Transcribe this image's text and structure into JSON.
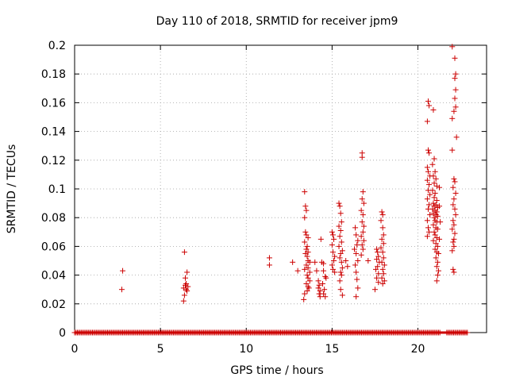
{
  "chart_data": {
    "type": "scatter",
    "title": "Day 110 of 2018, SRMTID for receiver jpm9",
    "xlabel": "GPS time / hours",
    "ylabel": "SRMTID / TECUs",
    "xlim": [
      0,
      24
    ],
    "ylim": [
      0,
      0.2
    ],
    "xticks": [
      0,
      5,
      10,
      15,
      20
    ],
    "xtick_labels": [
      "0",
      "5",
      "10",
      "15",
      "20"
    ],
    "yticks": [
      0,
      0.02,
      0.04,
      0.06,
      0.08,
      0.1,
      0.12,
      0.14,
      0.16,
      0.18,
      0.2
    ],
    "ytick_labels": [
      "0",
      "0.02",
      "0.04",
      "0.06",
      "0.08",
      "0.1",
      "0.12",
      "0.14",
      "0.16",
      "0.18",
      "0.2"
    ],
    "grid": true,
    "marker": "+",
    "color": "#cc0000",
    "zero_band": {
      "from": 0.0,
      "to": 22.9,
      "y": 0,
      "gaps": [
        [
          21.3,
          21.6
        ]
      ]
    },
    "series": [
      {
        "name": "SRMTID",
        "points": [
          [
            2.8,
            0.043
          ],
          [
            2.75,
            0.03
          ],
          [
            6.4,
            0.056
          ],
          [
            6.55,
            0.042
          ],
          [
            6.45,
            0.038
          ],
          [
            6.5,
            0.034
          ],
          [
            6.6,
            0.032
          ],
          [
            6.35,
            0.031
          ],
          [
            6.5,
            0.03
          ],
          [
            6.45,
            0.033
          ],
          [
            6.55,
            0.029
          ],
          [
            6.4,
            0.026
          ],
          [
            6.35,
            0.022
          ],
          [
            11.35,
            0.052
          ],
          [
            11.35,
            0.047
          ],
          [
            12.7,
            0.049
          ],
          [
            13.0,
            0.043
          ],
          [
            13.4,
            0.098
          ],
          [
            13.45,
            0.088
          ],
          [
            13.5,
            0.085
          ],
          [
            13.4,
            0.08
          ],
          [
            13.45,
            0.07
          ],
          [
            13.5,
            0.068
          ],
          [
            13.6,
            0.066
          ],
          [
            13.4,
            0.063
          ],
          [
            13.55,
            0.06
          ],
          [
            13.5,
            0.058
          ],
          [
            13.6,
            0.056
          ],
          [
            13.45,
            0.055
          ],
          [
            13.55,
            0.053
          ],
          [
            13.6,
            0.05
          ],
          [
            13.7,
            0.049
          ],
          [
            13.5,
            0.047
          ],
          [
            13.6,
            0.045
          ],
          [
            13.4,
            0.044
          ],
          [
            13.7,
            0.042
          ],
          [
            13.55,
            0.04
          ],
          [
            13.6,
            0.038
          ],
          [
            13.7,
            0.036
          ],
          [
            13.5,
            0.034
          ],
          [
            13.6,
            0.032
          ],
          [
            13.65,
            0.031
          ],
          [
            13.55,
            0.029
          ],
          [
            13.4,
            0.027
          ],
          [
            13.35,
            0.023
          ],
          [
            14.0,
            0.049
          ],
          [
            14.1,
            0.043
          ],
          [
            14.2,
            0.036
          ],
          [
            14.25,
            0.033
          ],
          [
            14.2,
            0.031
          ],
          [
            14.3,
            0.029
          ],
          [
            14.25,
            0.027
          ],
          [
            14.3,
            0.025
          ],
          [
            14.35,
            0.065
          ],
          [
            14.4,
            0.049
          ],
          [
            14.5,
            0.048
          ],
          [
            14.5,
            0.043
          ],
          [
            14.6,
            0.039
          ],
          [
            14.65,
            0.038
          ],
          [
            14.45,
            0.034
          ],
          [
            14.55,
            0.03
          ],
          [
            14.5,
            0.027
          ],
          [
            14.6,
            0.025
          ],
          [
            15.0,
            0.07
          ],
          [
            15.05,
            0.068
          ],
          [
            15.1,
            0.065
          ],
          [
            15.0,
            0.061
          ],
          [
            15.05,
            0.056
          ],
          [
            15.15,
            0.053
          ],
          [
            15.1,
            0.05
          ],
          [
            15.0,
            0.047
          ],
          [
            15.05,
            0.044
          ],
          [
            15.15,
            0.042
          ],
          [
            15.4,
            0.09
          ],
          [
            15.45,
            0.088
          ],
          [
            15.5,
            0.083
          ],
          [
            15.55,
            0.077
          ],
          [
            15.4,
            0.074
          ],
          [
            15.5,
            0.071
          ],
          [
            15.45,
            0.067
          ],
          [
            15.55,
            0.063
          ],
          [
            15.4,
            0.06
          ],
          [
            15.6,
            0.057
          ],
          [
            15.5,
            0.055
          ],
          [
            15.45,
            0.052
          ],
          [
            15.55,
            0.049
          ],
          [
            15.6,
            0.045
          ],
          [
            15.5,
            0.042
          ],
          [
            15.55,
            0.04
          ],
          [
            15.45,
            0.036
          ],
          [
            15.5,
            0.03
          ],
          [
            15.6,
            0.026
          ],
          [
            15.8,
            0.05
          ],
          [
            15.9,
            0.046
          ],
          [
            16.35,
            0.073
          ],
          [
            16.4,
            0.068
          ],
          [
            16.5,
            0.064
          ],
          [
            16.45,
            0.061
          ],
          [
            16.3,
            0.058
          ],
          [
            16.4,
            0.055
          ],
          [
            16.5,
            0.05
          ],
          [
            16.35,
            0.047
          ],
          [
            16.4,
            0.042
          ],
          [
            16.45,
            0.037
          ],
          [
            16.5,
            0.031
          ],
          [
            16.4,
            0.025
          ],
          [
            16.75,
            0.125
          ],
          [
            16.75,
            0.122
          ],
          [
            16.8,
            0.098
          ],
          [
            16.75,
            0.093
          ],
          [
            16.85,
            0.09
          ],
          [
            16.7,
            0.085
          ],
          [
            16.8,
            0.082
          ],
          [
            16.75,
            0.077
          ],
          [
            16.85,
            0.074
          ],
          [
            16.8,
            0.07
          ],
          [
            16.7,
            0.067
          ],
          [
            16.85,
            0.064
          ],
          [
            16.75,
            0.061
          ],
          [
            16.8,
            0.058
          ],
          [
            16.7,
            0.054
          ],
          [
            17.1,
            0.05
          ],
          [
            17.6,
            0.058
          ],
          [
            17.65,
            0.056
          ],
          [
            17.7,
            0.053
          ],
          [
            17.6,
            0.051
          ],
          [
            17.75,
            0.049
          ],
          [
            17.65,
            0.046
          ],
          [
            17.55,
            0.044
          ],
          [
            17.7,
            0.041
          ],
          [
            17.6,
            0.038
          ],
          [
            17.7,
            0.035
          ],
          [
            17.5,
            0.03
          ],
          [
            17.9,
            0.084
          ],
          [
            17.95,
            0.082
          ],
          [
            17.85,
            0.078
          ],
          [
            17.95,
            0.073
          ],
          [
            18.0,
            0.068
          ],
          [
            17.9,
            0.065
          ],
          [
            18.0,
            0.062
          ],
          [
            17.85,
            0.059
          ],
          [
            17.95,
            0.056
          ],
          [
            18.0,
            0.052
          ],
          [
            17.9,
            0.049
          ],
          [
            18.05,
            0.047
          ],
          [
            17.95,
            0.044
          ],
          [
            18.0,
            0.041
          ],
          [
            17.9,
            0.038
          ],
          [
            18.05,
            0.036
          ],
          [
            17.95,
            0.034
          ],
          [
            20.6,
            0.161
          ],
          [
            20.65,
            0.158
          ],
          [
            20.55,
            0.147
          ],
          [
            20.6,
            0.127
          ],
          [
            20.65,
            0.125
          ],
          [
            20.55,
            0.115
          ],
          [
            20.6,
            0.112
          ],
          [
            20.7,
            0.109
          ],
          [
            20.55,
            0.106
          ],
          [
            20.65,
            0.103
          ],
          [
            20.6,
            0.099
          ],
          [
            20.7,
            0.096
          ],
          [
            20.55,
            0.093
          ],
          [
            20.65,
            0.089
          ],
          [
            20.6,
            0.086
          ],
          [
            20.7,
            0.082
          ],
          [
            20.55,
            0.078
          ],
          [
            20.6,
            0.073
          ],
          [
            20.65,
            0.07
          ],
          [
            20.55,
            0.067
          ],
          [
            20.9,
            0.155
          ],
          [
            20.95,
            0.121
          ],
          [
            20.85,
            0.117
          ],
          [
            21.0,
            0.112
          ],
          [
            20.9,
            0.109
          ],
          [
            21.05,
            0.107
          ],
          [
            20.95,
            0.104
          ],
          [
            21.1,
            0.102
          ],
          [
            20.85,
            0.099
          ],
          [
            21.0,
            0.097
          ],
          [
            20.95,
            0.094
          ],
          [
            21.1,
            0.092
          ],
          [
            20.9,
            0.09
          ],
          [
            21.05,
            0.089
          ],
          [
            20.95,
            0.088
          ],
          [
            21.15,
            0.087
          ],
          [
            20.85,
            0.086
          ],
          [
            21.0,
            0.085
          ],
          [
            21.1,
            0.084
          ],
          [
            20.9,
            0.083
          ],
          [
            21.05,
            0.082
          ],
          [
            21.15,
            0.081
          ],
          [
            20.95,
            0.08
          ],
          [
            21.0,
            0.078
          ],
          [
            21.1,
            0.077
          ],
          [
            20.9,
            0.075
          ],
          [
            21.05,
            0.073
          ],
          [
            21.15,
            0.072
          ],
          [
            20.95,
            0.07
          ],
          [
            21.0,
            0.068
          ],
          [
            21.1,
            0.066
          ],
          [
            20.9,
            0.064
          ],
          [
            21.05,
            0.062
          ],
          [
            21.15,
            0.06
          ],
          [
            21.0,
            0.058
          ],
          [
            21.1,
            0.056
          ],
          [
            21.2,
            0.055
          ],
          [
            21.05,
            0.052
          ],
          [
            21.15,
            0.049
          ],
          [
            21.1,
            0.046
          ],
          [
            21.2,
            0.043
          ],
          [
            21.15,
            0.04
          ],
          [
            21.1,
            0.036
          ],
          [
            21.25,
            0.065
          ],
          [
            21.25,
            0.088
          ],
          [
            21.3,
            0.077
          ],
          [
            21.25,
            0.101
          ],
          [
            22.0,
            0.199
          ],
          [
            22.15,
            0.191
          ],
          [
            22.2,
            0.18
          ],
          [
            22.15,
            0.177
          ],
          [
            22.2,
            0.169
          ],
          [
            22.15,
            0.163
          ],
          [
            22.2,
            0.157
          ],
          [
            22.1,
            0.154
          ],
          [
            22.0,
            0.149
          ],
          [
            22.25,
            0.136
          ],
          [
            22.0,
            0.127
          ],
          [
            22.1,
            0.107
          ],
          [
            22.15,
            0.105
          ],
          [
            22.05,
            0.101
          ],
          [
            22.2,
            0.097
          ],
          [
            22.1,
            0.093
          ],
          [
            22.05,
            0.089
          ],
          [
            22.15,
            0.086
          ],
          [
            22.2,
            0.082
          ],
          [
            22.05,
            0.078
          ],
          [
            22.1,
            0.075
          ],
          [
            22.0,
            0.072
          ],
          [
            22.15,
            0.069
          ],
          [
            22.1,
            0.065
          ],
          [
            22.05,
            0.063
          ],
          [
            22.1,
            0.06
          ],
          [
            22.0,
            0.057
          ],
          [
            22.05,
            0.044
          ],
          [
            22.1,
            0.042
          ]
        ]
      }
    ]
  }
}
